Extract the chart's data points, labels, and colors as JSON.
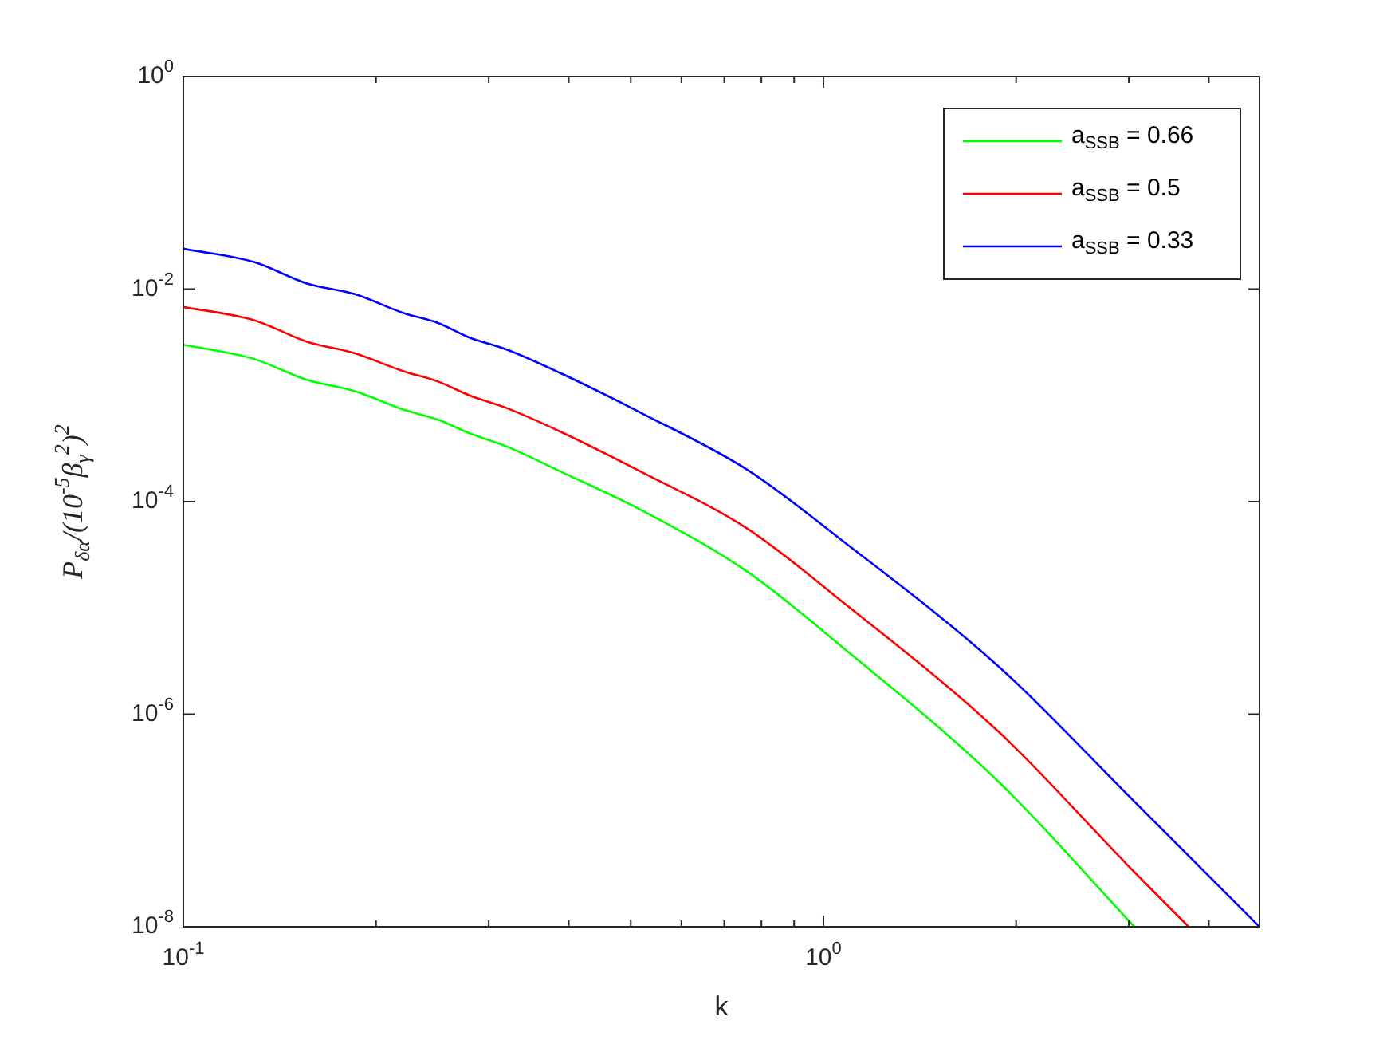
{
  "chart_data": {
    "type": "line",
    "xlabel": "k",
    "ylabel": "P$_{δα}$/(10$^{-5}$β$_{γ}$$^{2}$)$^{2}$",
    "log": "xy",
    "legend": "top right",
    "marker": "none",
    "line_style": "solid",
    "xlim": [
      0.1,
      4.8
    ],
    "ylim": [
      1e-08,
      1
    ],
    "xticks": [
      {
        "value": 0.1,
        "label": "10$^{-1}$"
      },
      {
        "value": 0.2,
        "label": null
      },
      {
        "value": 0.3,
        "label": null
      },
      {
        "value": 0.4,
        "label": null
      },
      {
        "value": 0.5,
        "label": null
      },
      {
        "value": 0.6,
        "label": null
      },
      {
        "value": 0.7,
        "label": null
      },
      {
        "value": 0.8,
        "label": null
      },
      {
        "value": 0.9,
        "label": null
      },
      {
        "value": 1,
        "label": "10$^{0}$"
      },
      {
        "value": 2,
        "label": null
      },
      {
        "value": 3,
        "label": null
      },
      {
        "value": 4,
        "label": null
      }
    ],
    "yticks": [
      {
        "value": 1e-08,
        "label": "10$^{-8}$"
      },
      {
        "value": 1e-06,
        "label": "10$^{-6}$"
      },
      {
        "value": 0.0001,
        "label": "10$^{-4}$"
      },
      {
        "value": 0.01,
        "label": "10$^{-2}$"
      },
      {
        "value": 1,
        "label": "10$^{0}$"
      }
    ],
    "series": [
      {
        "name": "a$_{SSB}$ = 0.66",
        "color": "#00ff00",
        "x": [
          0.1,
          0.129,
          0.156,
          0.185,
          0.22,
          0.25,
          0.28,
          0.32,
          0.39,
          0.52,
          0.76,
          1.06,
          1.88,
          3.06
        ],
        "values": [
          0.003,
          0.0022,
          0.0014,
          0.0011,
          0.00074,
          0.00059,
          0.00044,
          0.00033,
          0.00019,
          8.3e-05,
          2.2e-05,
          4.5e-06,
          2.3e-07,
          1e-08
        ]
      },
      {
        "name": "a$_{SSB}$ = 0.5",
        "color": "#ff0000",
        "x": [
          0.1,
          0.129,
          0.156,
          0.185,
          0.22,
          0.25,
          0.28,
          0.32,
          0.39,
          0.52,
          0.76,
          1.06,
          1.88,
          3.0,
          3.72
        ],
        "values": [
          0.0068,
          0.0051,
          0.0032,
          0.0025,
          0.0017,
          0.00135,
          0.001,
          0.00076,
          0.00045,
          0.00019,
          5.6e-05,
          1.2e-05,
          6.8e-07,
          3.7e-08,
          1e-08
        ]
      },
      {
        "name": "a$_{SSB}$ = 0.33",
        "color": "#0000ff",
        "x": [
          0.1,
          0.129,
          0.156,
          0.185,
          0.22,
          0.25,
          0.28,
          0.32,
          0.39,
          0.52,
          0.76,
          1.06,
          1.88,
          3.0,
          4.8
        ],
        "values": [
          0.024,
          0.018,
          0.0113,
          0.009,
          0.006,
          0.0048,
          0.0035,
          0.0027,
          0.0016,
          0.00068,
          0.0002,
          4.5e-05,
          2.8e-06,
          1.7e-07,
          1e-08
        ]
      }
    ]
  }
}
